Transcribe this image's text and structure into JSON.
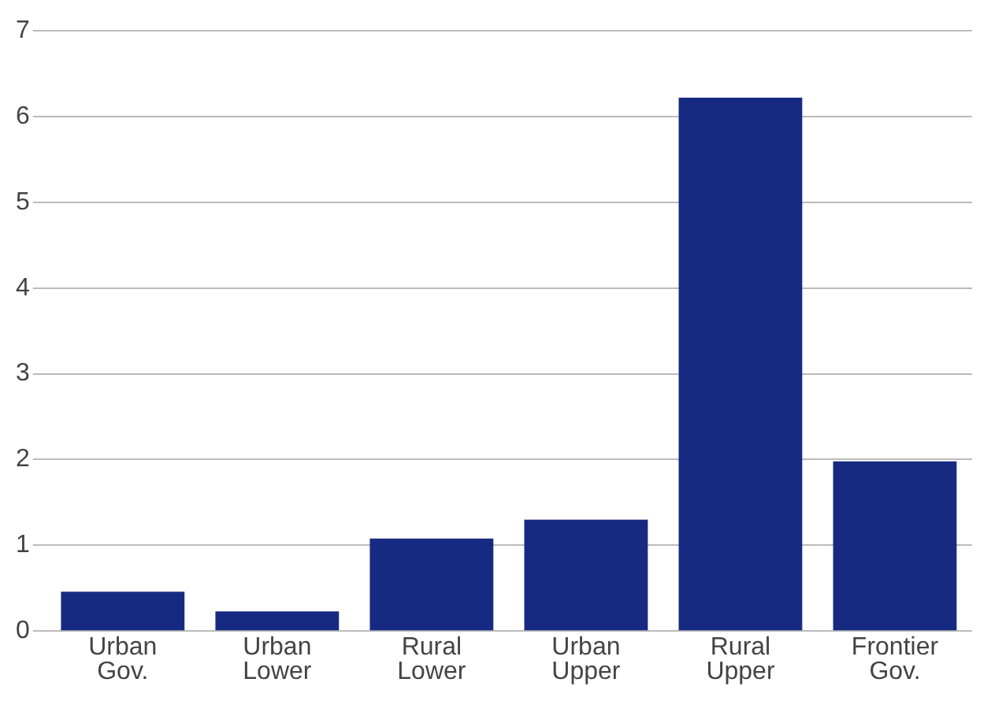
{
  "chart_data": {
    "type": "bar",
    "categories": [
      "Urban Gov.",
      "Urban Lower",
      "Rural Lower",
      "Urban Upper",
      "Rural Upper",
      "Frontier Gov."
    ],
    "values": [
      0.46,
      0.23,
      1.08,
      1.3,
      6.22,
      1.98
    ],
    "color": "#172a82",
    "ylim": [
      0,
      7
    ],
    "yticks": [
      0,
      1,
      2,
      3,
      4,
      5,
      6,
      7
    ],
    "grid": "y",
    "legend": false
  }
}
